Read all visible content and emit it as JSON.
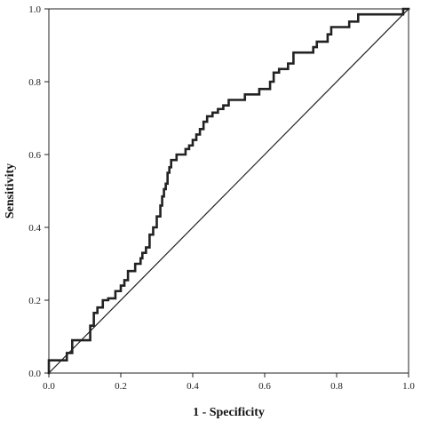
{
  "chart_data": {
    "type": "line",
    "title": "",
    "xlabel": "1 - Specificity",
    "ylabel": "Sensitivity",
    "xlim": [
      0,
      1
    ],
    "ylim": [
      0,
      1
    ],
    "grid": false,
    "x_ticks": [
      "0.0",
      "0.2",
      "0.4",
      "0.6",
      "0.8",
      "1.0"
    ],
    "y_ticks": [
      "0.0",
      "0.2",
      "0.4",
      "0.6",
      "0.8",
      "1.0"
    ],
    "series": [
      {
        "style": "roc-curve",
        "color": "#222222",
        "x": [
          0.0,
          0.0,
          0.05,
          0.05,
          0.065,
          0.065,
          0.075,
          0.075,
          0.115,
          0.115,
          0.125,
          0.125,
          0.135,
          0.135,
          0.15,
          0.15,
          0.165,
          0.165,
          0.185,
          0.185,
          0.2,
          0.2,
          0.21,
          0.21,
          0.22,
          0.22,
          0.24,
          0.24,
          0.255,
          0.255,
          0.26,
          0.26,
          0.27,
          0.27,
          0.28,
          0.28,
          0.29,
          0.29,
          0.3,
          0.3,
          0.31,
          0.31,
          0.315,
          0.315,
          0.32,
          0.32,
          0.325,
          0.325,
          0.33,
          0.33,
          0.335,
          0.335,
          0.34,
          0.34,
          0.345,
          0.345,
          0.355,
          0.355,
          0.38,
          0.38,
          0.39,
          0.39,
          0.4,
          0.4,
          0.41,
          0.41,
          0.42,
          0.42,
          0.43,
          0.43,
          0.44,
          0.44,
          0.455,
          0.455,
          0.47,
          0.47,
          0.485,
          0.485,
          0.5,
          0.5,
          0.545,
          0.545,
          0.585,
          0.585,
          0.615,
          0.615,
          0.625,
          0.625,
          0.64,
          0.64,
          0.665,
          0.665,
          0.67,
          0.67,
          0.68,
          0.68,
          0.735,
          0.735,
          0.745,
          0.745,
          0.775,
          0.775,
          0.785,
          0.785,
          0.835,
          0.835,
          0.86,
          0.86,
          0.985,
          0.985,
          1.0
        ],
        "y": [
          0.0,
          0.035,
          0.035,
          0.055,
          0.055,
          0.09,
          0.09,
          0.09,
          0.09,
          0.13,
          0.13,
          0.165,
          0.165,
          0.18,
          0.18,
          0.2,
          0.2,
          0.205,
          0.205,
          0.225,
          0.225,
          0.24,
          0.24,
          0.255,
          0.255,
          0.28,
          0.28,
          0.3,
          0.3,
          0.315,
          0.315,
          0.33,
          0.33,
          0.345,
          0.345,
          0.38,
          0.38,
          0.4,
          0.4,
          0.43,
          0.43,
          0.46,
          0.46,
          0.485,
          0.485,
          0.505,
          0.505,
          0.52,
          0.52,
          0.55,
          0.55,
          0.565,
          0.565,
          0.585,
          0.585,
          0.585,
          0.585,
          0.6,
          0.6,
          0.615,
          0.615,
          0.625,
          0.625,
          0.64,
          0.64,
          0.655,
          0.655,
          0.67,
          0.67,
          0.69,
          0.69,
          0.705,
          0.705,
          0.715,
          0.715,
          0.725,
          0.725,
          0.735,
          0.735,
          0.75,
          0.75,
          0.765,
          0.765,
          0.78,
          0.78,
          0.8,
          0.8,
          0.825,
          0.825,
          0.835,
          0.835,
          0.85,
          0.85,
          0.85,
          0.85,
          0.88,
          0.88,
          0.895,
          0.895,
          0.91,
          0.91,
          0.93,
          0.93,
          0.95,
          0.95,
          0.965,
          0.965,
          0.985,
          0.985,
          1.0,
          1.0
        ]
      },
      {
        "style": "reference-diagonal",
        "color": "#222222",
        "x": [
          0,
          1
        ],
        "y": [
          0,
          1
        ]
      }
    ]
  }
}
